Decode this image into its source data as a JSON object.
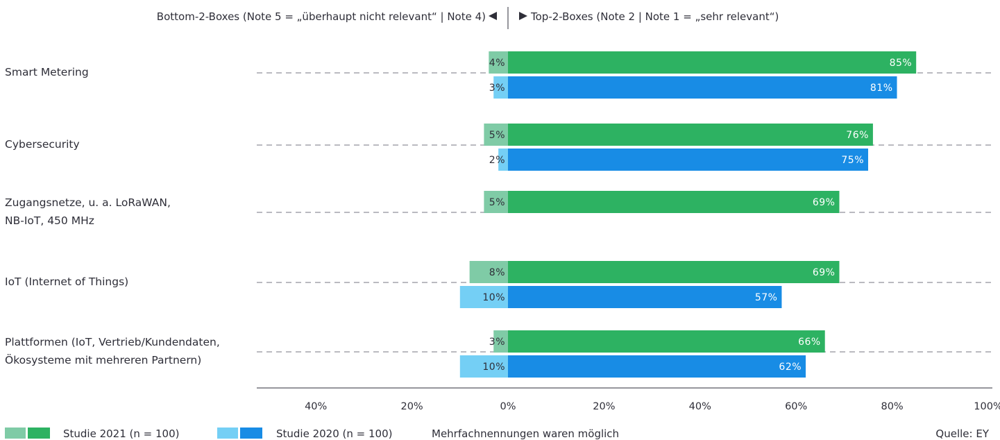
{
  "chart_data": {
    "type": "bar",
    "header": {
      "left": "Bottom-2-Boxes (Note 5 = „überhaupt nicht relevant“ | Note 4)",
      "right": "Top-2-Boxes (Note 2 | Note 1 = „sehr relevant“)"
    },
    "categories": [
      [
        "Smart Metering"
      ],
      [
        "Cybersecurity"
      ],
      [
        "Zugangsnetze, u. a. LoRaWAN,",
        "NB-IoT, 450 MHz"
      ],
      [
        "IoT (Internet of Things)"
      ],
      [
        "Plattformen (IoT, Vertrieb/Kundendaten,",
        "Ökosysteme mit mehreren Partnern)"
      ]
    ],
    "series": [
      {
        "name": "Studie 2021 (n = 100)",
        "bottom": [
          4,
          5,
          5,
          8,
          3
        ],
        "top": [
          85,
          76,
          69,
          69,
          66
        ],
        "colors": {
          "bottom": "#7fcba6",
          "top": "#2db262"
        }
      },
      {
        "name": "Studie 2020 (n = 100)",
        "bottom": [
          3,
          2,
          null,
          10,
          10
        ],
        "top": [
          81,
          75,
          null,
          57,
          62
        ],
        "colors": {
          "bottom": "#74cff5",
          "top": "#188ce5"
        }
      }
    ],
    "x_ticks": [
      -40,
      -20,
      0,
      20,
      40,
      60,
      80,
      100
    ],
    "x_tick_labels": [
      "40%",
      "20%",
      "0%",
      "20%",
      "40%",
      "60%",
      "80%",
      "100%"
    ],
    "xlim": [
      -52,
      100
    ],
    "note": "Mehrfachnennungen waren möglich",
    "source": "Quelle: EY",
    "grid": "dashed separator per category",
    "legend_position": "bottom"
  }
}
